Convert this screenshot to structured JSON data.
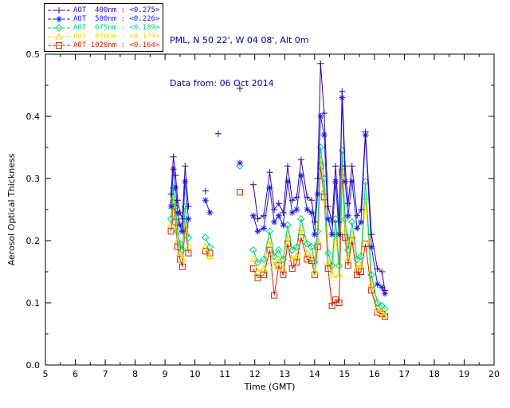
{
  "header": {
    "station": "PML, N 50 22', W 04 08', Alt 0m",
    "date_line": "Data from: 06 Oct 2014",
    "text_color": "#000099"
  },
  "legend": {
    "entries": [
      {
        "text": "AOT  400nm : <0.275>",
        "color": "#2e0099",
        "marker": "plus"
      },
      {
        "text": "AOT  500nm : <0.226>",
        "color": "#1a1aee",
        "marker": "asterisk"
      },
      {
        "text": "AOT  675nm : <0.189>",
        "color": "#00cc77",
        "marker": "diamond"
      },
      {
        "text": "AOT  870nm : <0.173>",
        "color": "#e8d800",
        "marker": "triangle"
      },
      {
        "text": "AOT 1020nm : <0.164>",
        "color": "#cc2200",
        "marker": "square"
      }
    ]
  },
  "chart_data": {
    "type": "line",
    "title": "",
    "xlabel": "Time (GMT)",
    "ylabel": "Aerosol Optical Thickness",
    "xlim": [
      5,
      20
    ],
    "ylim": [
      0,
      0.5
    ],
    "xticks": [
      5,
      6,
      7,
      8,
      9,
      10,
      11,
      12,
      13,
      14,
      15,
      16,
      17,
      18,
      19,
      20
    ],
    "yticks": [
      0.0,
      0.1,
      0.2,
      0.3,
      0.4,
      0.5
    ],
    "grid": false,
    "legend_position": "top-left",
    "x": [
      9.2,
      9.28,
      9.35,
      9.42,
      9.5,
      9.58,
      9.67,
      9.78,
      10.35,
      10.5,
      10.78,
      11.5,
      11.95,
      12.1,
      12.3,
      12.5,
      12.65,
      12.8,
      12.95,
      13.1,
      13.25,
      13.4,
      13.55,
      13.75,
      13.9,
      14.0,
      14.1,
      14.2,
      14.32,
      14.45,
      14.58,
      14.7,
      14.82,
      14.92,
      15.02,
      15.12,
      15.25,
      15.42,
      15.55,
      15.7,
      15.9,
      16.1,
      16.25,
      16.35
    ],
    "series": [
      {
        "name": "AOT 400nm",
        "wavelength_nm": 400,
        "mean_label": "<0.275>",
        "color": "#2e0099",
        "marker": "plus",
        "values": [
          0.275,
          0.335,
          0.305,
          0.265,
          0.245,
          0.235,
          0.32,
          0.255,
          0.28,
          null,
          0.372,
          0.445,
          0.29,
          0.235,
          0.24,
          0.31,
          0.25,
          0.26,
          0.245,
          0.32,
          0.265,
          0.27,
          0.33,
          0.27,
          0.265,
          0.23,
          0.3,
          0.485,
          0.405,
          0.255,
          0.23,
          0.32,
          0.23,
          0.44,
          0.32,
          0.26,
          0.32,
          0.24,
          0.25,
          0.375,
          0.21,
          0.155,
          0.15,
          0.12
        ]
      },
      {
        "name": "AOT 500nm",
        "wavelength_nm": 500,
        "mean_label": "<0.226>",
        "color": "#1a1aee",
        "marker": "asterisk",
        "values": [
          0.255,
          0.315,
          0.285,
          0.245,
          0.225,
          0.215,
          0.295,
          0.235,
          0.265,
          0.245,
          null,
          0.325,
          0.24,
          0.215,
          0.22,
          0.285,
          0.23,
          0.24,
          0.225,
          0.295,
          0.245,
          0.25,
          0.305,
          0.25,
          0.245,
          0.21,
          0.275,
          0.4,
          0.37,
          0.235,
          0.21,
          0.295,
          0.21,
          0.43,
          0.295,
          0.24,
          0.295,
          0.22,
          0.23,
          0.37,
          0.19,
          0.13,
          0.125,
          0.115
        ]
      },
      {
        "name": "AOT 675nm",
        "wavelength_nm": 675,
        "mean_label": "<0.189>",
        "color": "#00cc77",
        "marker": "diamond",
        "values": [
          0.235,
          0.285,
          0.255,
          0.215,
          0.195,
          0.185,
          0.255,
          0.205,
          0.205,
          0.19,
          null,
          0.32,
          0.185,
          0.165,
          0.17,
          0.215,
          0.175,
          0.185,
          0.17,
          0.225,
          0.185,
          0.19,
          0.235,
          0.195,
          0.19,
          0.165,
          0.215,
          0.35,
          0.3,
          0.18,
          0.16,
          0.235,
          0.16,
          0.345,
          0.235,
          0.185,
          0.23,
          0.17,
          0.175,
          0.295,
          0.145,
          0.1,
          0.095,
          0.09
        ]
      },
      {
        "name": "AOT 870nm",
        "wavelength_nm": 870,
        "mean_label": "<0.173>",
        "color": "#e8d800",
        "marker": "triangle",
        "values": [
          0.225,
          0.27,
          0.24,
          0.2,
          0.18,
          0.17,
          0.235,
          0.19,
          0.19,
          0.175,
          null,
          null,
          0.17,
          0.15,
          0.155,
          0.2,
          0.16,
          0.17,
          0.155,
          0.21,
          0.17,
          0.175,
          0.22,
          0.18,
          0.175,
          0.15,
          0.2,
          0.33,
          0.28,
          0.165,
          0.145,
          0.215,
          0.145,
          0.32,
          0.215,
          0.17,
          0.21,
          0.155,
          0.16,
          0.27,
          0.13,
          0.09,
          0.085,
          0.08
        ]
      },
      {
        "name": "AOT 1020nm",
        "wavelength_nm": 1020,
        "mean_label": "<0.164>",
        "color": "#cc2200",
        "marker": "square",
        "values": [
          0.215,
          0.26,
          0.23,
          0.19,
          0.17,
          0.158,
          0.225,
          0.18,
          0.183,
          0.18,
          null,
          0.278,
          0.155,
          0.14,
          0.145,
          0.185,
          0.112,
          0.16,
          0.145,
          0.195,
          0.155,
          0.165,
          0.205,
          0.17,
          0.168,
          0.145,
          0.19,
          0.32,
          0.27,
          0.155,
          0.095,
          0.105,
          0.1,
          0.31,
          0.205,
          0.16,
          0.2,
          0.145,
          0.15,
          0.195,
          0.12,
          0.085,
          0.082,
          0.078
        ]
      }
    ]
  }
}
